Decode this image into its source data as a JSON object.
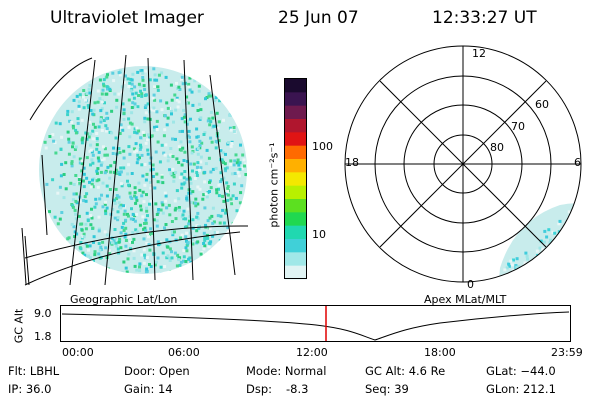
{
  "header": {
    "title": "Ultraviolet Imager",
    "date": "25 Jun 07",
    "time": "12:33:27 UT"
  },
  "colorbar": {
    "unit_label": "photon cm⁻²s⁻¹",
    "ticks": [
      "100",
      "10"
    ],
    "colors": [
      "#1a0a2e",
      "#3a1450",
      "#6e1a4e",
      "#b0162e",
      "#e01414",
      "#ff6a00",
      "#ffb000",
      "#f4e800",
      "#b8f000",
      "#5ce020",
      "#20d850",
      "#20d8b0",
      "#40d0d8",
      "#a0e8e8",
      "#e0f4f4"
    ]
  },
  "left_panel": {
    "caption": "Geographic Lat/Lon"
  },
  "right_panel": {
    "caption": "Apex MLat/MLT",
    "hour_labels": {
      "top": "12",
      "left": "18",
      "right": "6",
      "bottom": "0"
    },
    "lat_labels": [
      "60",
      "70",
      "80"
    ]
  },
  "altitude_plot": {
    "ylabel": "GC Alt",
    "yticks": [
      "9.0",
      "1.8"
    ],
    "xticks": [
      "00:00",
      "06:00",
      "12:00",
      "18:00",
      "23:59"
    ],
    "marker_color": "#e00000"
  },
  "info": {
    "filter": "Flt: LBHL",
    "ip": "IP: 36.0",
    "door": "Door: Open",
    "gain": "Gain: 14",
    "mode": "Mode: Normal",
    "dsp_label": "Dsp:",
    "dsp_value": "-8.3",
    "gc_alt": "GC Alt: 4.6 Re",
    "seq": "Seq: 39",
    "glat": "GLat: −44.0",
    "glon": "GLon: 212.1"
  }
}
